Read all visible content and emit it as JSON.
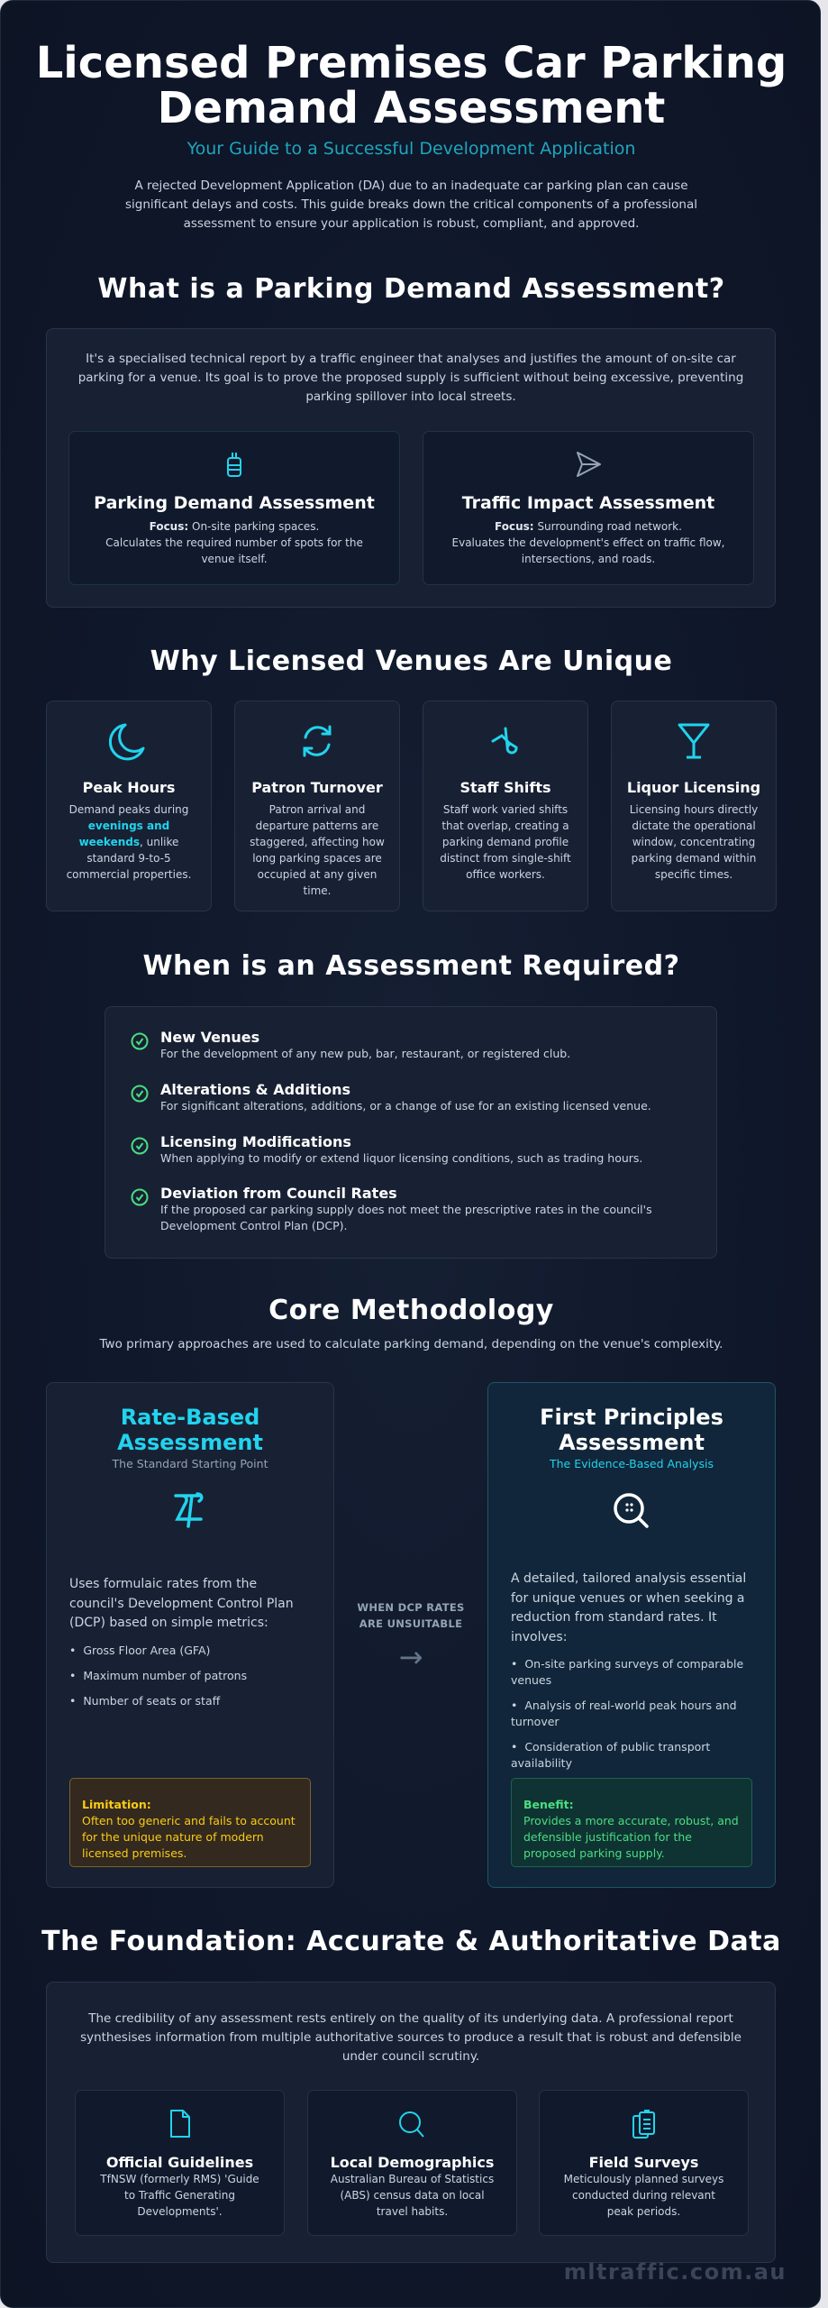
{
  "header": {
    "title": "Licensed Premises Car Parking Demand Assessment",
    "subtitle": "Your Guide to a Successful Development Application",
    "intro": "A rejected Development Application (DA) due to an inadequate car parking plan can cause significant delays and costs. This guide breaks down the critical components of a professional assessment to ensure your application is robust, compliant, and approved."
  },
  "what": {
    "heading": "What is a Parking Demand Assessment?",
    "text": "It's a specialised technical report by a traffic engineer that analyses and justifies the amount of on-site car parking for a venue. Its goal is to prove the proposed supply is sufficient without being excessive, preventing parking spillover into local streets.",
    "cards": [
      {
        "icon": "parking-meter-icon",
        "title": "Parking Demand Assessment",
        "focus_label": "Focus:",
        "focus": "On-site parking spaces.",
        "desc": "Calculates the required number of spots for the venue itself."
      },
      {
        "icon": "navigation-arrow-icon",
        "title": "Traffic Impact Assessment",
        "focus_label": "Focus:",
        "focus": "Surrounding road network.",
        "desc": "Evaluates the development's effect on traffic flow, intersections, and roads."
      }
    ]
  },
  "unique": {
    "heading": "Why Licensed Venues Are Unique",
    "cards": [
      {
        "icon": "moon-icon",
        "title": "Peak Hours",
        "pre": "Demand peaks during ",
        "highlight": "evenings and weekends",
        "post": ", unlike standard 9-to-5 commercial properties."
      },
      {
        "icon": "refresh-icon",
        "title": "Patron Turnover",
        "desc": "Patron arrival and departure patterns are staggered, affecting how long parking spaces are occupied at any given time."
      },
      {
        "icon": "staff-icon",
        "title": "Staff Shifts",
        "desc": "Staff work varied shifts that overlap, creating a parking demand profile distinct from single-shift office workers."
      },
      {
        "icon": "cocktail-glass-icon",
        "title": "Liquor Licensing",
        "desc": "Licensing hours directly dictate the operational window, concentrating parking demand within specific times."
      }
    ]
  },
  "required": {
    "heading": "When is an Assessment Required?",
    "items": [
      {
        "title": "New Venues",
        "desc": "For the development of any new pub, bar, restaurant, or registered club."
      },
      {
        "title": "Alterations & Additions",
        "desc": "For significant alterations, additions, or a change of use for an existing licensed venue."
      },
      {
        "title": "Licensing Modifications",
        "desc": "When applying to modify or extend liquor licensing conditions, such as trading hours."
      },
      {
        "title": "Deviation from Council Rates",
        "desc": "If the proposed car parking supply does not meet the prescriptive rates in the council's Development Control Plan (DCP)."
      }
    ]
  },
  "method": {
    "heading": "Core Methodology",
    "subheading": "Two primary approaches are used to calculate parking demand, depending on the venue's complexity.",
    "connector": "WHEN DCP RATES ARE UNSUITABLE",
    "arrow": "→",
    "rate": {
      "title": "Rate-Based Assessment",
      "tagline": "The Standard Starting Point",
      "icon": "formula-icon",
      "text": "Uses formulaic rates from the council's Development Control Plan (DCP) based on simple metrics:",
      "bullets": [
        "Gross Floor Area (GFA)",
        "Maximum number of patrons",
        "Number of seats or staff"
      ],
      "note_label": "Limitation:",
      "note": "Often too generic and fails to account for the unique nature of modern licensed premises."
    },
    "first": {
      "title": "First Principles Assessment",
      "tagline": "The Evidence-Based Analysis",
      "icon": "search-analysis-icon",
      "text": "A detailed, tailored analysis essential for unique venues or when seeking a reduction from standard rates. It involves:",
      "bullets": [
        "On-site parking surveys of comparable venues",
        "Analysis of real-world peak hours and turnover",
        "Consideration of public transport availability"
      ],
      "note_label": "Benefit:",
      "note": "Provides a more accurate, robust, and defensible justification for the proposed parking supply."
    }
  },
  "foundation": {
    "heading": "The Foundation: Accurate & Authoritative Data",
    "text": "The credibility of any assessment rests entirely on the quality of its underlying data. A professional report synthesises information from multiple authoritative sources to produce a result that is robust and defensible under council scrutiny.",
    "cards": [
      {
        "icon": "document-icon",
        "title": "Official Guidelines",
        "desc": "TfNSW (formerly RMS) 'Guide to Traffic Generating Developments'."
      },
      {
        "icon": "search-icon",
        "title": "Local Demographics",
        "desc": "Australian Bureau of Statistics (ABS) census data on local travel habits."
      },
      {
        "icon": "clipboard-icon",
        "title": "Field Surveys",
        "desc": "Meticulously planned surveys conducted during relevant peak periods."
      }
    ]
  },
  "watermark": "mltraffic.com.au",
  "colors": {
    "accent": "#22d3ee",
    "check": "#4ade80",
    "limitation": "#facc15",
    "benefit": "#4ade80"
  }
}
